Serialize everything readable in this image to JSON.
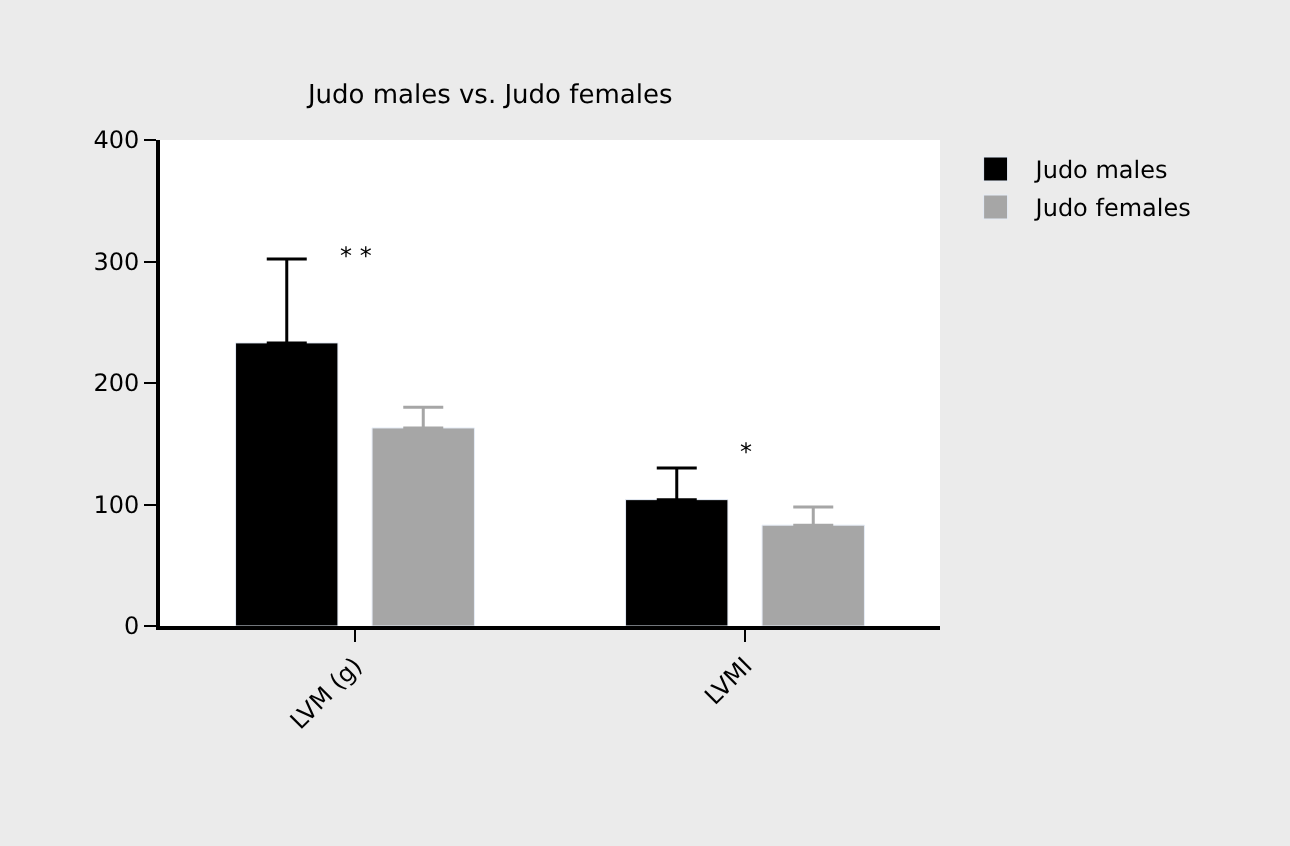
{
  "chart_data": {
    "type": "bar",
    "title": "Judo males vs. Judo females",
    "categories": [
      "LVM (g)",
      "LVMI"
    ],
    "series": [
      {
        "name": "Judo males",
        "color": "#000000",
        "values": [
          233,
          104
        ],
        "errors": [
          [
            233,
            302
          ],
          [
            104,
            130
          ]
        ]
      },
      {
        "name": "Judo females",
        "color": "#a6a6a6",
        "values": [
          163,
          83
        ],
        "errors": [
          [
            163,
            180
          ],
          [
            83,
            98
          ]
        ]
      }
    ],
    "ylim": [
      0,
      400
    ],
    "yticks": [
      0,
      100,
      200,
      300,
      400
    ],
    "legend": "top right",
    "annotations": [
      "* *",
      "*"
    ]
  }
}
